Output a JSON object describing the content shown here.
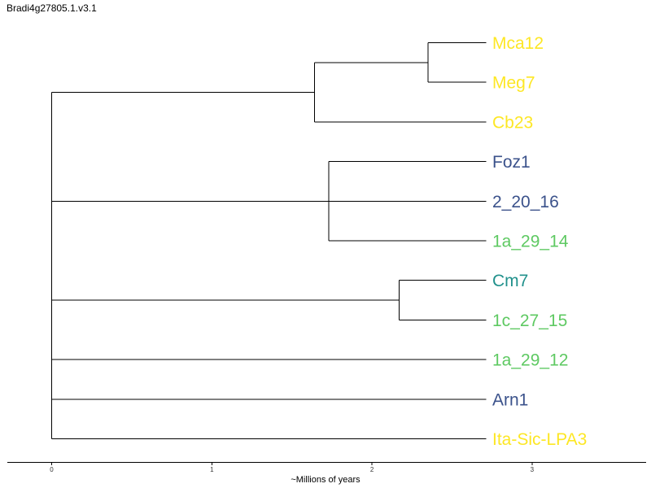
{
  "title": "Bradi4g27805.1.v3.1",
  "axis": {
    "label": "~Millions of years",
    "ticks": [
      0,
      1,
      2,
      3
    ],
    "min": 0,
    "max": 3.7
  },
  "colors": {
    "yellow": "#fde725",
    "slate": "#3b528b",
    "teal": "#21918c",
    "green": "#5ec962",
    "branch": "#000000"
  },
  "tips": [
    {
      "label": "Mca12",
      "color": "#fde725"
    },
    {
      "label": "Meg7",
      "color": "#fde725"
    },
    {
      "label": "Cb23",
      "color": "#fde725"
    },
    {
      "label": "Foz1",
      "color": "#3b528b"
    },
    {
      "label": "2_20_16",
      "color": "#3b528b"
    },
    {
      "label": "1a_29_14",
      "color": "#5ec962"
    },
    {
      "label": "Cm7",
      "color": "#21918c"
    },
    {
      "label": "1c_27_15",
      "color": "#5ec962"
    },
    {
      "label": "1a_29_12",
      "color": "#5ec962"
    },
    {
      "label": "Arn1",
      "color": "#3b528b"
    },
    {
      "label": "Ita-Sic-LPA3",
      "color": "#fde725"
    }
  ],
  "tree": {
    "age": 0,
    "children": [
      {
        "age": 1.64,
        "children": [
          {
            "age": 2.35,
            "children": [
              {
                "tip": 0
              },
              {
                "tip": 1
              }
            ]
          },
          {
            "tip": 2
          }
        ]
      },
      {
        "age": 1.73,
        "children": [
          {
            "tip": 3
          },
          {
            "tip": 4
          },
          {
            "tip": 5
          }
        ]
      },
      {
        "age": 2.17,
        "children": [
          {
            "tip": 6
          },
          {
            "tip": 7
          }
        ]
      },
      {
        "tip": 8
      },
      {
        "tip": 9
      },
      {
        "tip": 10
      }
    ]
  }
}
